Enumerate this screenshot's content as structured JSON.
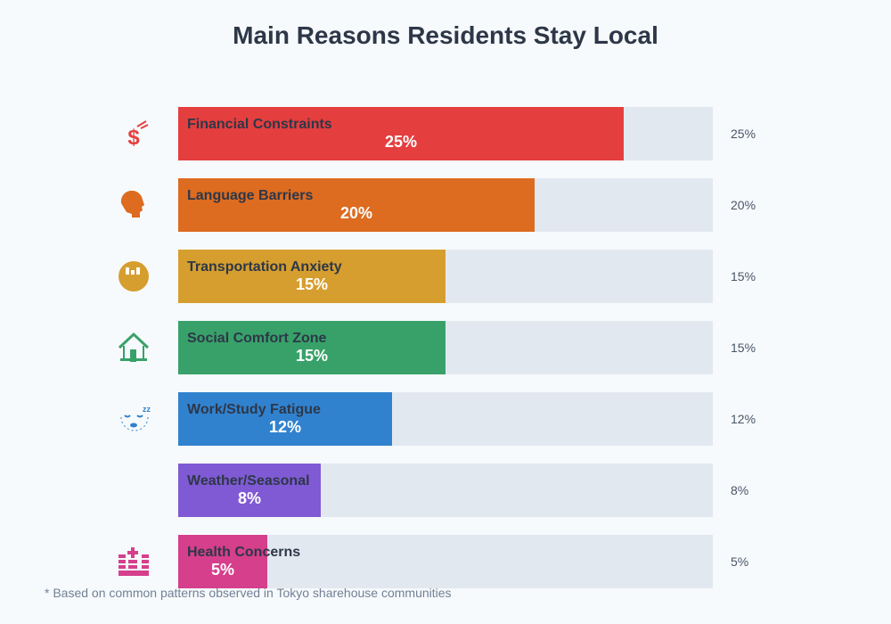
{
  "chart_data": {
    "type": "bar",
    "orientation": "horizontal",
    "title": "Main Reasons Residents Stay Local",
    "categories": [
      "Financial Constraints",
      "Language Barriers",
      "Transportation Anxiety",
      "Social Comfort Zone",
      "Work/Study Fatigue",
      "Weather/Seasonal",
      "Health Concerns"
    ],
    "values": [
      25,
      20,
      15,
      15,
      12,
      8,
      5
    ],
    "labels": [
      "25%",
      "20%",
      "15%",
      "15%",
      "12%",
      "8%",
      "5%"
    ],
    "colors": [
      "#e53e3e",
      "#dd6b20",
      "#d69e2e",
      "#38a169",
      "#3182ce",
      "#805ad5",
      "#d53f8c"
    ],
    "icons": [
      "money-with-wings-icon",
      "speaking-head-icon",
      "metro-icon",
      "house-icon",
      "sleeping-face-icon",
      "weather-icon",
      "hospital-icon"
    ],
    "xlim": [
      0,
      30
    ],
    "track_color": "#e2e8f0",
    "grid": false,
    "footnote": "* Based on common patterns observed in Tokyo sharehouse communities"
  }
}
